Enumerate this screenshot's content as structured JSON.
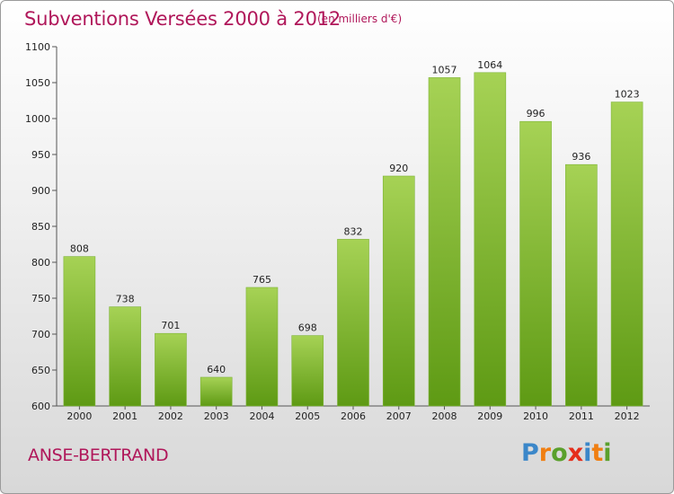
{
  "header": {
    "title": "Subventions Versées 2000 à 2012",
    "unit": "(en milliers d'€)"
  },
  "footer": {
    "place": "ANSE-BERTRAND",
    "logo": "Proxiti",
    "logo_colors": [
      "#3b87c9",
      "#f07f12",
      "#5aa02c",
      "#e52e1b",
      "#3b87c9",
      "#f07f12",
      "#5aa02c"
    ]
  },
  "colors": {
    "bar_light": "#a6d255",
    "bar_dark": "#5e9a14",
    "title": "#b0175a"
  },
  "chart_data": {
    "type": "bar",
    "title": "Subventions Versées 2000 à 2012",
    "xlabel": "",
    "ylabel": "",
    "categories": [
      "2000",
      "2001",
      "2002",
      "2003",
      "2004",
      "2005",
      "2006",
      "2007",
      "2008",
      "2009",
      "2010",
      "2011",
      "2012"
    ],
    "values": [
      808,
      738,
      701,
      640,
      765,
      698,
      832,
      920,
      1057,
      1064,
      996,
      936,
      1023
    ],
    "ylim": [
      600,
      1100
    ],
    "yticks": [
      600,
      650,
      700,
      750,
      800,
      850,
      900,
      950,
      1000,
      1050,
      1100
    ],
    "grid": false,
    "data_labels": true
  }
}
